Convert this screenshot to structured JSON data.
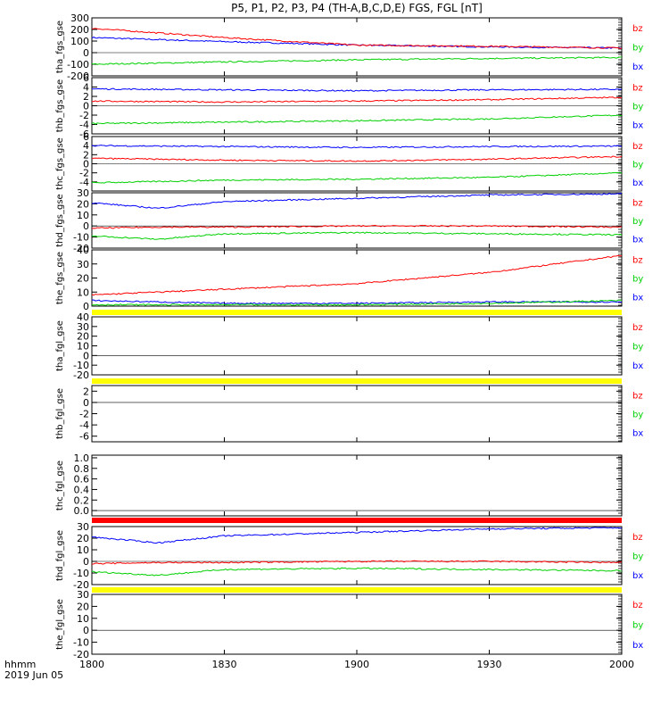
{
  "title": "P5, P1, P2, P3, P4 (TH-A,B,C,D,E) FGS, FGL [nT]",
  "time_axis": {
    "label_line1": "hhmm",
    "label_line2": "2019 Jun 05",
    "ticks": [
      "1800",
      "1830",
      "1900",
      "1930",
      "2000"
    ]
  },
  "colors": {
    "bx": "#0000ff",
    "by": "#00d000",
    "bz": "#ff0000",
    "flag_yellow": "#ffff00",
    "flag_red": "#ff0000",
    "frame": "#000000"
  },
  "chart_data": [
    {
      "type": "line",
      "ylabel": "tha_fgs_gse",
      "ylim": [
        -200,
        300
      ],
      "ytick_labels": [
        "300",
        "200",
        "100",
        "0",
        "-100",
        "-200"
      ],
      "legend": [
        "bz",
        "by",
        "bx"
      ],
      "series": [
        {
          "name": "bx",
          "x": [
            "1800",
            "1830",
            "1900",
            "1930",
            "2000"
          ],
          "values": [
            130,
            95,
            65,
            50,
            40
          ]
        },
        {
          "name": "by",
          "x": [
            "1800",
            "1830",
            "1900",
            "1930",
            "2000"
          ],
          "values": [
            -100,
            -80,
            -62,
            -50,
            -42
          ]
        },
        {
          "name": "bz",
          "x": [
            "1800",
            "1830",
            "1900",
            "1930",
            "2000"
          ],
          "values": [
            210,
            130,
            65,
            55,
            40
          ]
        }
      ]
    },
    {
      "type": "line",
      "ylabel": "thb_fgs_gse",
      "ylim": [
        -6,
        6
      ],
      "ytick_labels": [
        "6",
        "4",
        "2",
        "0",
        "-2",
        "-4",
        "-6"
      ],
      "legend": [
        "bz",
        "by",
        "bx"
      ],
      "series": [
        {
          "name": "bx",
          "x": [
            "1800",
            "1830",
            "1900",
            "1930",
            "2000"
          ],
          "values": [
            3.6,
            3.4,
            3.2,
            3.4,
            3.5
          ]
        },
        {
          "name": "by",
          "x": [
            "1800",
            "1830",
            "1900",
            "1930",
            "2000"
          ],
          "values": [
            -3.8,
            -3.5,
            -3.2,
            -2.8,
            -2.0
          ]
        },
        {
          "name": "bz",
          "x": [
            "1800",
            "1830",
            "1900",
            "1930",
            "2000"
          ],
          "values": [
            1.0,
            0.8,
            1.0,
            1.3,
            1.8
          ]
        }
      ]
    },
    {
      "type": "line",
      "ylabel": "thc_fgs_gse",
      "ylim": [
        -6,
        6
      ],
      "ytick_labels": [
        "6",
        "4",
        "2",
        "0",
        "-2",
        "-4"
      ],
      "legend": [
        "bz",
        "by",
        "bx"
      ],
      "series": [
        {
          "name": "bx",
          "x": [
            "1800",
            "1830",
            "1900",
            "1930",
            "2000"
          ],
          "values": [
            4.0,
            3.8,
            3.6,
            3.8,
            3.9
          ]
        },
        {
          "name": "by",
          "x": [
            "1800",
            "1830",
            "1900",
            "1930",
            "2000"
          ],
          "values": [
            -4.2,
            -3.6,
            -3.4,
            -3.0,
            -2.0
          ]
        },
        {
          "name": "bz",
          "x": [
            "1800",
            "1830",
            "1900",
            "1930",
            "2000"
          ],
          "values": [
            1.2,
            0.8,
            0.6,
            1.0,
            1.6
          ]
        }
      ]
    },
    {
      "type": "line",
      "ylabel": "thd_fgs_gse",
      "ylim": [
        -20,
        30
      ],
      "ytick_labels": [
        "30",
        "20",
        "10",
        "0",
        "-10",
        "-20"
      ],
      "legend": [
        "bz",
        "by",
        "bx"
      ],
      "series": [
        {
          "name": "bx",
          "x": [
            "1800",
            "1815",
            "1830",
            "1900",
            "1930",
            "2000"
          ],
          "values": [
            21,
            16,
            22,
            25,
            28,
            29
          ]
        },
        {
          "name": "by",
          "x": [
            "1800",
            "1815",
            "1830",
            "1900",
            "1930",
            "2000"
          ],
          "values": [
            -9,
            -12,
            -7,
            -6,
            -7,
            -8
          ]
        },
        {
          "name": "bz",
          "x": [
            "1800",
            "1815",
            "1830",
            "1900",
            "1930",
            "2000"
          ],
          "values": [
            -2,
            -1,
            -1,
            0,
            0,
            -1
          ]
        }
      ]
    },
    {
      "type": "line",
      "ylabel": "the_fgs_gse",
      "ylim": [
        0,
        40
      ],
      "ytick_labels": [
        "40",
        "30",
        "20",
        "10",
        "0"
      ],
      "legend": [
        "bz",
        "by",
        "bx"
      ],
      "series": [
        {
          "name": "bx",
          "x": [
            "1800",
            "1830",
            "1900",
            "1930",
            "2000"
          ],
          "values": [
            4,
            2,
            2,
            3,
            3
          ]
        },
        {
          "name": "by",
          "x": [
            "1800",
            "1830",
            "1900",
            "1930",
            "2000"
          ],
          "values": [
            1,
            1,
            1,
            2,
            4
          ]
        },
        {
          "name": "bz",
          "x": [
            "1800",
            "1830",
            "1900",
            "1930",
            "2000"
          ],
          "values": [
            8,
            12,
            16,
            24,
            36
          ]
        }
      ]
    },
    {
      "type": "line",
      "ylabel": "tha_fgl_gse",
      "ylim": [
        -20,
        40
      ],
      "ytick_labels": [
        "40",
        "30",
        "20",
        "10",
        "0",
        "-10",
        "-20"
      ],
      "legend": [
        "bz",
        "by",
        "bx"
      ],
      "series": []
    },
    {
      "type": "line",
      "ylabel": "thb_fgl_gse",
      "ylim": [
        -7,
        3
      ],
      "ytick_labels": [
        "2",
        "0",
        "-2",
        "-4",
        "-6"
      ],
      "legend": [
        "bz",
        "by",
        "bx"
      ],
      "series": []
    },
    {
      "type": "line",
      "ylabel": "thc_fgl_gse",
      "ylim": [
        -0.1,
        1.05
      ],
      "ytick_labels": [
        "1.0",
        "0.8",
        "0.6",
        "0.4",
        "0.2",
        "0.0"
      ],
      "legend": [],
      "series": []
    },
    {
      "type": "line",
      "ylabel": "thd_fgl_gse",
      "ylim": [
        -20,
        30
      ],
      "ytick_labels": [
        "30",
        "20",
        "10",
        "0",
        "-10",
        "-20"
      ],
      "legend": [
        "bz",
        "by",
        "bx"
      ],
      "series": [
        {
          "name": "bx",
          "x": [
            "1800",
            "1815",
            "1830",
            "1900",
            "1930",
            "2000"
          ],
          "values": [
            21,
            16,
            22,
            25,
            28,
            29
          ]
        },
        {
          "name": "by",
          "x": [
            "1800",
            "1815",
            "1830",
            "1900",
            "1930",
            "2000"
          ],
          "values": [
            -9,
            -12,
            -7,
            -6,
            -7,
            -8
          ]
        },
        {
          "name": "bz",
          "x": [
            "1800",
            "1815",
            "1830",
            "1900",
            "1930",
            "2000"
          ],
          "values": [
            -2,
            -1,
            -1,
            0,
            0,
            -1
          ]
        }
      ]
    },
    {
      "type": "line",
      "ylabel": "the_fgl_gse",
      "ylim": [
        -20,
        30
      ],
      "ytick_labels": [
        "30",
        "20",
        "10",
        "0",
        "-10",
        "-20"
      ],
      "legend": [
        "bz",
        "by",
        "bx"
      ],
      "series": []
    }
  ]
}
